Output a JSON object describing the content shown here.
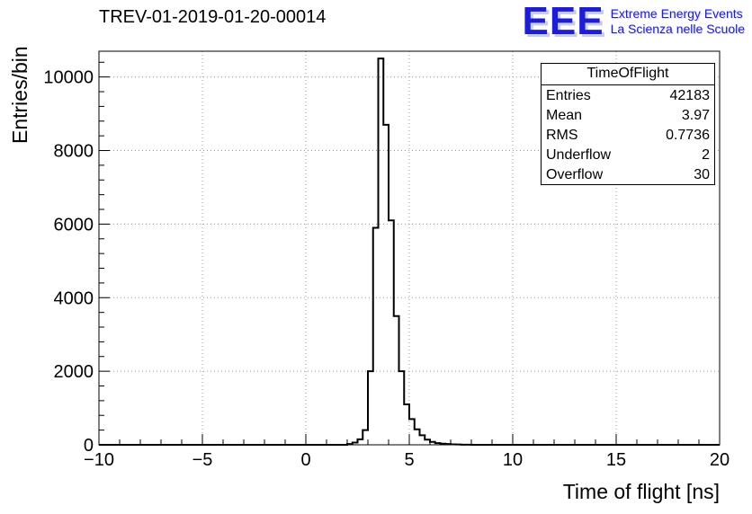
{
  "title": "TREV-01-2019-01-20-00014",
  "logo": {
    "text": "EEE",
    "line1": "Extreme Energy Events",
    "line2": "La Scienza nelle Scuole",
    "color": "#1d1dd1"
  },
  "stats": {
    "title": "TimeOfFlight",
    "rows": [
      {
        "label": "Entries",
        "value": "42183"
      },
      {
        "label": "Mean",
        "value": "3.97"
      },
      {
        "label": "RMS",
        "value": "0.7736"
      },
      {
        "label": "Underflow",
        "value": "2"
      },
      {
        "label": "Overflow",
        "value": "30"
      }
    ]
  },
  "chart_data": {
    "type": "bar",
    "subtype": "step-histogram",
    "title": "TREV-01-2019-01-20-00014",
    "xlabel": "Time of flight [ns]",
    "ylabel": "Entries/bin",
    "xlim": [
      -10,
      20
    ],
    "ylim": [
      0,
      10700
    ],
    "grid": true,
    "x_major_ticks": [
      -10,
      -5,
      0,
      5,
      10,
      15,
      20
    ],
    "x_tick_labels": [
      "−10",
      "−5",
      "0",
      "5",
      "10",
      "15",
      "20"
    ],
    "x_minor_step": 1,
    "y_major_ticks": [
      0,
      2000,
      4000,
      6000,
      8000,
      10000
    ],
    "y_tick_labels": [
      "0",
      "2000",
      "4000",
      "6000",
      "8000",
      "10000"
    ],
    "y_minor_step": 400,
    "bin_width": 0.25,
    "bin_left_edges": [
      2.0,
      2.25,
      2.5,
      2.75,
      3.0,
      3.25,
      3.5,
      3.75,
      4.0,
      4.25,
      4.5,
      4.75,
      5.0,
      5.25,
      5.5,
      5.75,
      6.0,
      6.25,
      6.5,
      6.75,
      7.0,
      7.25,
      7.5,
      7.75
    ],
    "values": [
      20,
      60,
      150,
      400,
      2000,
      5900,
      10500,
      8700,
      6100,
      3500,
      2000,
      1100,
      700,
      420,
      260,
      140,
      80,
      45,
      30,
      20,
      12,
      8,
      4,
      2
    ],
    "line_color": "#000000",
    "grid_color": "#9a9a9a",
    "legend_position": "none"
  }
}
